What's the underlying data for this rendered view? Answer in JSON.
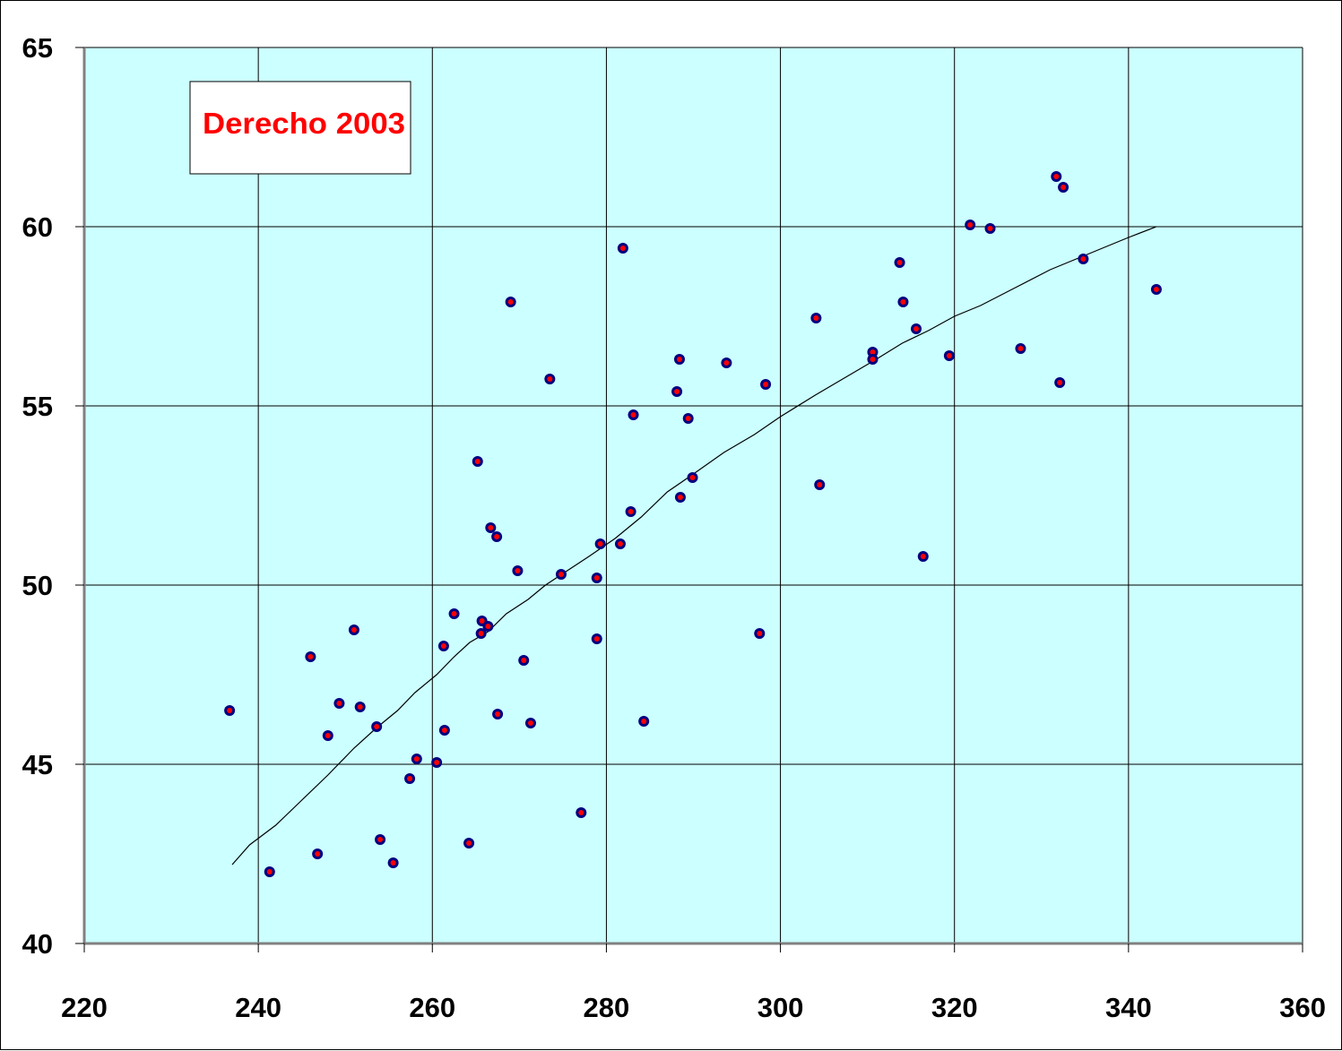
{
  "chart_data": {
    "type": "scatter",
    "title": "",
    "xlabel": "",
    "ylabel": "",
    "xlim": [
      220,
      360
    ],
    "ylim": [
      40,
      65
    ],
    "x_ticks": [
      "220",
      "240",
      "260",
      "280",
      "300",
      "320",
      "340",
      "360"
    ],
    "y_ticks": [
      "40",
      "45",
      "50",
      "55",
      "60",
      "65"
    ],
    "grid": true,
    "plot_background": "#ccffff",
    "annotation": {
      "text": "Derecho 2003",
      "color": "#ff0000",
      "position": "top-left"
    },
    "series": [
      {
        "type": "scatter",
        "marker_fill": "#ff0000",
        "marker_edge": "#000080",
        "points": [
          [
            236.7,
            46.5
          ],
          [
            241.3,
            42.0
          ],
          [
            246.0,
            48.0
          ],
          [
            246.8,
            42.5
          ],
          [
            248.0,
            45.8
          ],
          [
            249.3,
            46.7
          ],
          [
            251.0,
            48.75
          ],
          [
            251.7,
            46.6
          ],
          [
            253.6,
            46.05
          ],
          [
            254.0,
            42.9
          ],
          [
            255.5,
            42.25
          ],
          [
            257.4,
            44.6
          ],
          [
            258.2,
            45.15
          ],
          [
            260.5,
            45.05
          ],
          [
            261.3,
            48.3
          ],
          [
            261.4,
            45.95
          ],
          [
            262.5,
            49.2
          ],
          [
            264.2,
            42.8
          ],
          [
            265.2,
            53.45
          ],
          [
            265.6,
            48.65
          ],
          [
            265.7,
            49.0
          ],
          [
            266.4,
            48.85
          ],
          [
            266.7,
            51.6
          ],
          [
            267.4,
            51.35
          ],
          [
            267.5,
            46.4
          ],
          [
            269.0,
            57.9
          ],
          [
            269.8,
            50.4
          ],
          [
            270.5,
            47.9
          ],
          [
            271.3,
            46.15
          ],
          [
            273.5,
            55.75
          ],
          [
            274.8,
            50.3
          ],
          [
            277.1,
            43.65
          ],
          [
            278.9,
            50.2
          ],
          [
            278.9,
            48.5
          ],
          [
            279.3,
            51.15
          ],
          [
            281.6,
            51.15
          ],
          [
            281.9,
            59.4
          ],
          [
            282.8,
            52.05
          ],
          [
            283.1,
            54.75
          ],
          [
            284.3,
            46.2
          ],
          [
            288.1,
            55.4
          ],
          [
            288.4,
            56.3
          ],
          [
            288.5,
            52.45
          ],
          [
            289.4,
            54.65
          ],
          [
            289.9,
            53.0
          ],
          [
            293.8,
            56.2
          ],
          [
            297.6,
            48.65
          ],
          [
            298.3,
            55.6
          ],
          [
            304.1,
            57.45
          ],
          [
            304.5,
            52.8
          ],
          [
            310.6,
            56.5
          ],
          [
            310.6,
            56.3
          ],
          [
            313.7,
            59.0
          ],
          [
            314.1,
            57.9
          ],
          [
            315.6,
            57.15
          ],
          [
            316.4,
            50.8
          ],
          [
            319.4,
            56.4
          ],
          [
            321.8,
            60.05
          ],
          [
            324.1,
            59.95
          ],
          [
            327.6,
            56.6
          ],
          [
            331.7,
            61.4
          ],
          [
            332.1,
            55.65
          ],
          [
            332.5,
            61.1
          ],
          [
            334.8,
            59.1
          ],
          [
            343.2,
            58.25
          ]
        ]
      },
      {
        "type": "line",
        "color": "#000000",
        "points": [
          [
            237.0,
            42.2
          ],
          [
            239.0,
            42.75
          ],
          [
            242.0,
            43.3
          ],
          [
            245.0,
            44.0
          ],
          [
            248.0,
            44.7
          ],
          [
            251.0,
            45.45
          ],
          [
            253.5,
            46.0
          ],
          [
            256.0,
            46.5
          ],
          [
            258.0,
            47.0
          ],
          [
            260.5,
            47.5
          ],
          [
            262.5,
            48.0
          ],
          [
            264.3,
            48.4
          ],
          [
            266.4,
            48.7
          ],
          [
            268.5,
            49.2
          ],
          [
            271.0,
            49.6
          ],
          [
            273.0,
            50.0
          ],
          [
            275.5,
            50.4
          ],
          [
            278.0,
            50.8
          ],
          [
            281.0,
            51.3
          ],
          [
            284.0,
            51.9
          ],
          [
            287.0,
            52.6
          ],
          [
            290.0,
            53.1
          ],
          [
            293.5,
            53.7
          ],
          [
            297.0,
            54.2
          ],
          [
            300.0,
            54.7
          ],
          [
            304.0,
            55.3
          ],
          [
            307.5,
            55.8
          ],
          [
            311.0,
            56.3
          ],
          [
            314.0,
            56.75
          ],
          [
            317.0,
            57.1
          ],
          [
            320.0,
            57.5
          ],
          [
            323.0,
            57.8
          ],
          [
            327.0,
            58.3
          ],
          [
            331.0,
            58.8
          ],
          [
            334.0,
            59.1
          ],
          [
            337.0,
            59.4
          ],
          [
            340.0,
            59.7
          ],
          [
            343.2,
            60.0
          ]
        ]
      }
    ]
  }
}
